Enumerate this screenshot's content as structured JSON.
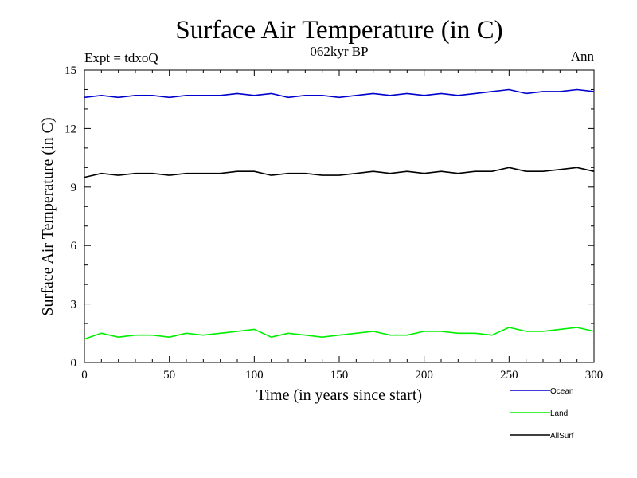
{
  "chart_data": {
    "type": "line",
    "title": "Surface Air Temperature (in C)",
    "subtitle_left": "Expt = tdxoQ",
    "subtitle_center": "062kyr BP",
    "subtitle_right": "Ann",
    "xlabel": "Time (in years since start)",
    "ylabel": "Surface Air Temperature (in C)",
    "xlim": [
      0,
      300
    ],
    "ylim": [
      0,
      15
    ],
    "xticks": [
      0,
      50,
      100,
      150,
      200,
      250,
      300
    ],
    "yticks": [
      0,
      3,
      6,
      9,
      12,
      15
    ],
    "grid": false,
    "legend_position": "bottom-right, below plot",
    "series": [
      {
        "name": "Ocean",
        "color": "#0000cc",
        "x": [
          0,
          10,
          20,
          30,
          40,
          50,
          60,
          70,
          80,
          90,
          100,
          110,
          120,
          130,
          140,
          150,
          160,
          170,
          180,
          190,
          200,
          210,
          220,
          230,
          240,
          250,
          260,
          270,
          280,
          290,
          300
        ],
        "y": [
          13.6,
          13.7,
          13.6,
          13.7,
          13.7,
          13.6,
          13.7,
          13.7,
          13.7,
          13.8,
          13.7,
          13.8,
          13.6,
          13.7,
          13.7,
          13.6,
          13.7,
          13.8,
          13.7,
          13.8,
          13.7,
          13.8,
          13.7,
          13.8,
          13.9,
          14.0,
          13.8,
          13.9,
          13.9,
          14.0,
          13.9
        ]
      },
      {
        "name": "Land",
        "color": "#00ee00",
        "x": [
          0,
          10,
          20,
          30,
          40,
          50,
          60,
          70,
          80,
          90,
          100,
          110,
          120,
          130,
          140,
          150,
          160,
          170,
          180,
          190,
          200,
          210,
          220,
          230,
          240,
          250,
          260,
          270,
          280,
          290,
          300
        ],
        "y": [
          1.2,
          1.5,
          1.3,
          1.4,
          1.4,
          1.3,
          1.5,
          1.4,
          1.5,
          1.6,
          1.7,
          1.3,
          1.5,
          1.4,
          1.3,
          1.4,
          1.5,
          1.6,
          1.4,
          1.4,
          1.6,
          1.6,
          1.5,
          1.5,
          1.4,
          1.8,
          1.6,
          1.6,
          1.7,
          1.8,
          1.6
        ]
      },
      {
        "name": "AllSurf",
        "color": "#000000",
        "x": [
          0,
          10,
          20,
          30,
          40,
          50,
          60,
          70,
          80,
          90,
          100,
          110,
          120,
          130,
          140,
          150,
          160,
          170,
          180,
          190,
          200,
          210,
          220,
          230,
          240,
          250,
          260,
          270,
          280,
          290,
          300
        ],
        "y": [
          9.5,
          9.7,
          9.6,
          9.7,
          9.7,
          9.6,
          9.7,
          9.7,
          9.7,
          9.8,
          9.8,
          9.6,
          9.7,
          9.7,
          9.6,
          9.6,
          9.7,
          9.8,
          9.7,
          9.8,
          9.7,
          9.8,
          9.7,
          9.8,
          9.8,
          10.0,
          9.8,
          9.8,
          9.9,
          10.0,
          9.8
        ]
      }
    ]
  }
}
